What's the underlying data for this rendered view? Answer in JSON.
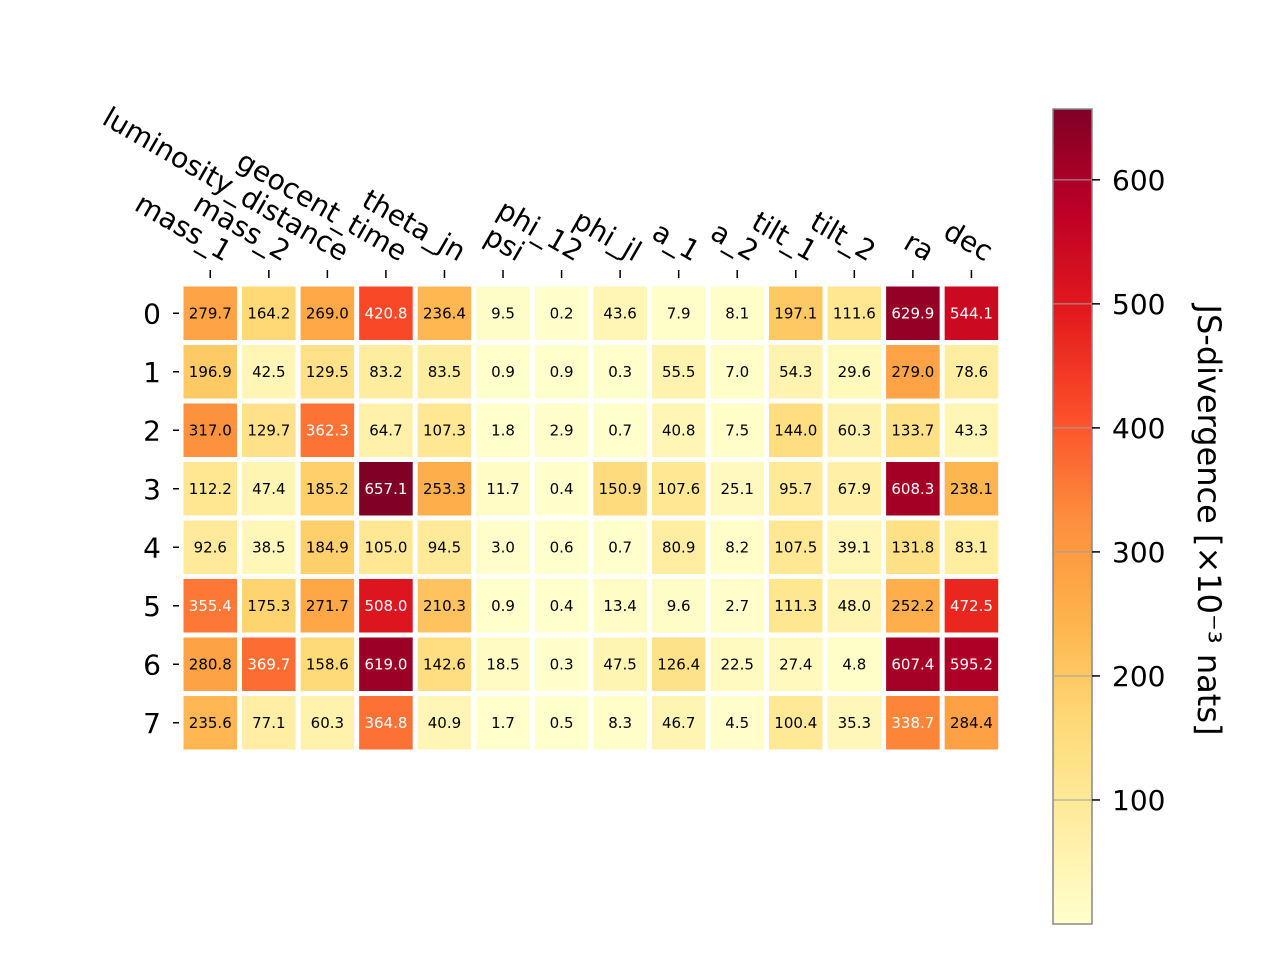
{
  "chart_data": {
    "type": "heatmap",
    "colormap": "YlOrRd",
    "rows": [
      "0",
      "1",
      "2",
      "3",
      "4",
      "5",
      "6",
      "7"
    ],
    "columns": [
      "mass_1",
      "mass_2",
      "luminosity_distance",
      "geocent_time",
      "theta_jn",
      "psi",
      "phi_12",
      "phi_jl",
      "a_1",
      "a_2",
      "tilt_1",
      "tilt_2",
      "ra",
      "dec"
    ],
    "values": [
      [
        279.7,
        164.2,
        269.0,
        420.8,
        236.4,
        9.5,
        0.2,
        43.6,
        7.9,
        8.1,
        197.1,
        111.6,
        629.9,
        544.1
      ],
      [
        196.9,
        42.5,
        129.5,
        83.2,
        83.5,
        0.9,
        0.9,
        0.3,
        55.5,
        7.0,
        54.3,
        29.6,
        279.0,
        78.6
      ],
      [
        317.0,
        129.7,
        362.3,
        64.7,
        107.3,
        1.8,
        2.9,
        0.7,
        40.8,
        7.5,
        144.0,
        60.3,
        133.7,
        43.3
      ],
      [
        112.2,
        47.4,
        185.2,
        657.1,
        253.3,
        11.7,
        0.4,
        150.9,
        107.6,
        25.1,
        95.7,
        67.9,
        608.3,
        238.1
      ],
      [
        92.6,
        38.5,
        184.9,
        105.0,
        94.5,
        3.0,
        0.6,
        0.7,
        80.9,
        8.2,
        107.5,
        39.1,
        131.8,
        83.1
      ],
      [
        355.4,
        175.3,
        271.7,
        508.0,
        210.3,
        0.9,
        0.4,
        13.4,
        9.6,
        2.7,
        111.3,
        48.0,
        252.2,
        472.5
      ],
      [
        280.8,
        369.7,
        158.6,
        619.0,
        142.6,
        18.5,
        0.3,
        47.5,
        126.4,
        22.5,
        27.4,
        4.8,
        607.4,
        595.2
      ],
      [
        235.6,
        77.1,
        60.3,
        364.8,
        40.9,
        1.7,
        0.5,
        8.3,
        46.7,
        4.5,
        100.4,
        35.3,
        338.7,
        284.4
      ]
    ],
    "colorbar": {
      "label": "JS-divergence [×10⁻³ nats]",
      "ticks": [
        100,
        200,
        300,
        400,
        500,
        600
      ],
      "range": [
        0,
        657.1
      ]
    }
  }
}
